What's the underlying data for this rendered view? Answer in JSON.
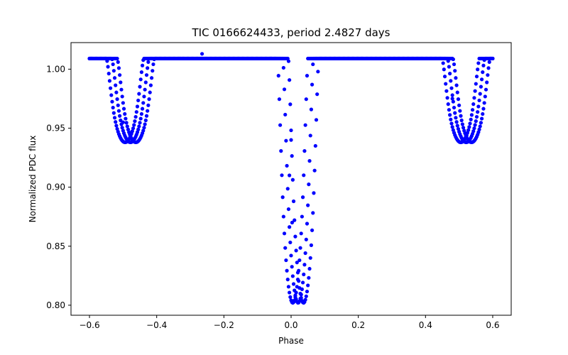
{
  "chart_data": {
    "type": "scatter",
    "title": "TIC 0166624433, period 2.4827 days",
    "xlabel": "Phase",
    "ylabel": "Normalized PDC flux",
    "xlim": [
      -0.655,
      0.655
    ],
    "ylim": [
      0.7915,
      1.0225
    ],
    "xticks": [
      -0.6,
      -0.4,
      -0.2,
      0.0,
      0.2,
      0.4,
      0.6
    ],
    "xtick_labels": [
      "−0.6",
      "−0.4",
      "−0.2",
      "0.0",
      "0.2",
      "0.4",
      "0.6"
    ],
    "yticks": [
      0.8,
      0.85,
      0.9,
      0.95,
      1.0
    ],
    "ytick_labels": [
      "0.80",
      "0.85",
      "0.90",
      "0.95",
      "1.00"
    ],
    "grid": false,
    "marker_color": "#0000ff",
    "x_range_of_data": [
      -0.6,
      0.6
    ],
    "baseline_flux": 1.009,
    "eclipses": [
      {
        "name": "secondary eclipse",
        "center_phase": -0.478,
        "min_flux": 0.938,
        "half_width": 0.055
      },
      {
        "name": "primary eclipse",
        "center_phase": 0.021,
        "min_flux": 0.802,
        "half_width": 0.045
      },
      {
        "name": "secondary eclipse",
        "center_phase": 0.521,
        "min_flux": 0.938,
        "half_width": 0.055
      }
    ],
    "track_offsets": [
      -0.016,
      0.0,
      0.016
    ],
    "outlier_points": [
      {
        "x": -0.265,
        "y": 1.013
      },
      {
        "x": -0.5,
        "y": 0.955
      },
      {
        "x": 0.48,
        "y": 0.975
      },
      {
        "x": 0.0,
        "y": 0.94
      },
      {
        "x": -0.005,
        "y": 0.91
      },
      {
        "x": 0.003,
        "y": 0.87
      }
    ]
  }
}
